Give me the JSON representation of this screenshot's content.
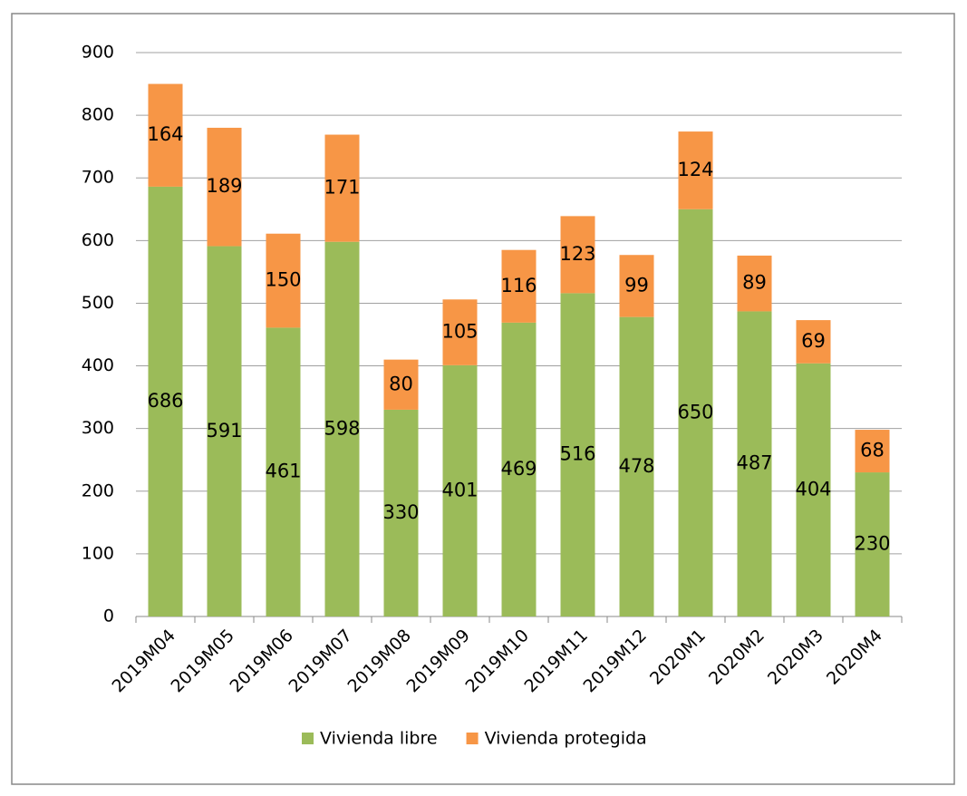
{
  "chart_data": {
    "type": "stacked_bar",
    "categories": [
      "2019M04",
      "2019M05",
      "2019M06",
      "2019M07",
      "2019M08",
      "2019M09",
      "2019M10",
      "2019M11",
      "2019M12",
      "2020M1",
      "2020M2",
      "2020M3",
      "2020M4"
    ],
    "series": [
      {
        "name": "Vivienda libre",
        "color": "#9bbb59",
        "values": [
          686,
          591,
          461,
          598,
          330,
          401,
          469,
          516,
          478,
          650,
          487,
          404,
          230
        ]
      },
      {
        "name": "Vivienda protegida",
        "color": "#f79646",
        "values": [
          164,
          189,
          150,
          171,
          80,
          105,
          116,
          123,
          99,
          124,
          89,
          69,
          68
        ]
      }
    ],
    "ylim": [
      0,
      900
    ],
    "yticks": [
      0,
      100,
      200,
      300,
      400,
      500,
      600,
      700,
      800,
      900
    ],
    "grid": true,
    "legend": "bottom"
  }
}
